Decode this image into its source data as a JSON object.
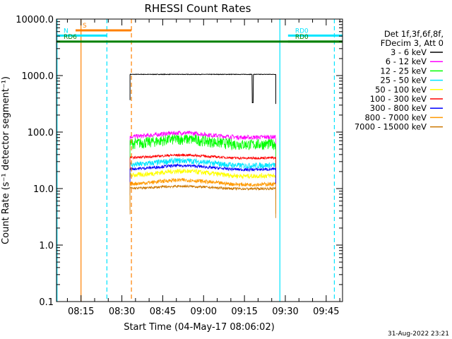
{
  "chart_data": {
    "type": "line",
    "title": "RHESSI Count Rates",
    "xlabel": "Start Time (04-May-17 08:06:02)",
    "ylabel": "Count Rate (s⁻¹ detector segment⁻¹)",
    "ylim": [
      0.1,
      10000.0
    ],
    "yscale": "log",
    "xlim_minutes": [
      6.0,
      111.0
    ],
    "y_ticks": [
      "0.1",
      "1.0",
      "10.0",
      "100.0",
      "1000.0",
      "10000.0"
    ],
    "x_ticks": [
      {
        "label": "08:15",
        "minutes": 15
      },
      {
        "label": "08:30",
        "minutes": 30
      },
      {
        "label": "08:45",
        "minutes": 45
      },
      {
        "label": "09:00",
        "minutes": 60
      },
      {
        "label": "09:15",
        "minutes": 75
      },
      {
        "label": "09:30",
        "minutes": 90
      },
      {
        "label": "09:45",
        "minutes": 105
      }
    ],
    "legend_header": [
      "Det 1f,3f,6f,8f,",
      "FDecim 3, Att 0"
    ],
    "legend_position": "right",
    "series": [
      {
        "name": "3 - 6 keV",
        "color": "#000000",
        "level": 1050,
        "noise": 0.01,
        "hump": 0.0
      },
      {
        "name": "6 - 12 keV",
        "color": "#ff00ff",
        "level": 82,
        "noise": 0.09,
        "hump": 0.18
      },
      {
        "name": "12 - 25 keV",
        "color": "#00ff00",
        "level": 62,
        "noise": 0.22,
        "hump": 0.22
      },
      {
        "name": "25 - 50 keV",
        "color": "#00e5ff",
        "level": 26,
        "noise": 0.12,
        "hump": 0.2
      },
      {
        "name": "50 - 100 keV",
        "color": "#ffff00",
        "level": 17,
        "noise": 0.1,
        "hump": 0.2
      },
      {
        "name": "100 - 300 keV",
        "color": "#ff0000",
        "level": 35,
        "noise": 0.05,
        "hump": 0.12
      },
      {
        "name": "300 - 800 keV",
        "color": "#0000ff",
        "level": 22,
        "noise": 0.06,
        "hump": 0.16
      },
      {
        "name": "800 - 7000 keV",
        "color": "#ff9900",
        "level": 12,
        "noise": 0.08,
        "hump": 0.18
      },
      {
        "name": "7000 - 15000 keV",
        "color": "#cc7700",
        "level": 10,
        "noise": 0.05,
        "hump": 0.1
      }
    ],
    "data_interval_minutes": [
      33.0,
      86.5
    ],
    "flags": [
      {
        "label": "S",
        "start": 13.0,
        "end": 33.5,
        "level": 6300,
        "color": "#ff8000"
      },
      {
        "label": "N",
        "start": 6.0,
        "end": 24.5,
        "level": 5100,
        "color": "#00e5ff"
      },
      {
        "label": "RD0",
        "start": 91.0,
        "end": 112.0,
        "level": 5100,
        "color": "#00e5ff"
      },
      {
        "label": "RD6",
        "start": 6.0,
        "end": 112.0,
        "level": 4000,
        "color": "#008000"
      },
      {
        "label": "RD0",
        "start": 91.0,
        "end": 112.0,
        "level": 4000,
        "color": "#008000"
      }
    ],
    "vertical_lines": [
      {
        "minutes": 15.0,
        "color": "#ff8000",
        "style": "solid"
      },
      {
        "minutes": 24.5,
        "color": "#00e5ff",
        "style": "dashed"
      },
      {
        "minutes": 33.5,
        "color": "#ff8000",
        "style": "dashed"
      },
      {
        "minutes": 6.2,
        "color": "#00e5ff",
        "style": "solid"
      },
      {
        "minutes": 88.0,
        "color": "#00e5ff",
        "style": "solid"
      },
      {
        "minutes": 108.0,
        "color": "#00e5ff",
        "style": "dashed"
      }
    ]
  },
  "footer": {
    "date": "31-Aug-2022 23:21"
  }
}
